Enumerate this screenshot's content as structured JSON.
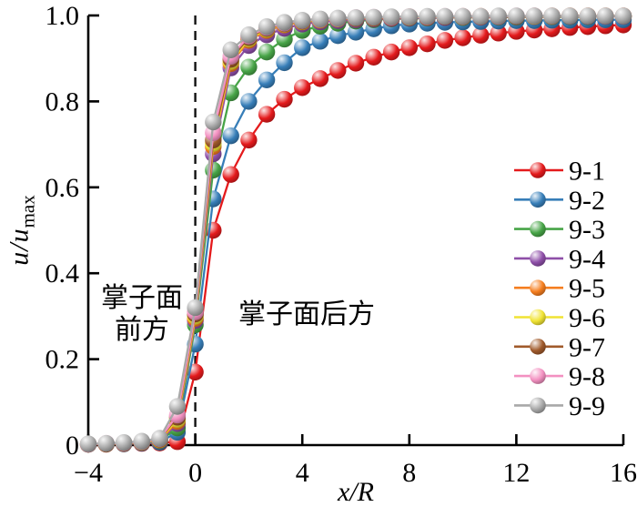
{
  "figure": {
    "background": "#ffffff",
    "axis_color": "#000000",
    "face_line_color": "#111111"
  },
  "chart_data": {
    "type": "line",
    "title": "",
    "xlabel_italic": "x/R",
    "ylabel_italic": "u/u",
    "ylabel_subscript": "max",
    "xlim": [
      -4,
      16
    ],
    "ylim": [
      0,
      1.0
    ],
    "grid": false,
    "legend_position": "right-middle",
    "face_line_x": 0,
    "xticks": {
      "values": [
        -4,
        0,
        4,
        8,
        12,
        16
      ],
      "labels": [
        "−4",
        "0",
        "4",
        "8",
        "12",
        "16"
      ]
    },
    "yticks": {
      "values": [
        0,
        0.2,
        0.4,
        0.6,
        0.8,
        1.0
      ],
      "labels": [
        "0",
        "0.2",
        "0.4",
        "0.6",
        "0.8",
        "1.0"
      ]
    },
    "annotations": {
      "ahead_line1": "掌子面",
      "ahead_line2": "前方",
      "behind": "掌子面后方"
    },
    "x": [
      -4,
      -3.33,
      -2.67,
      -2,
      -1.33,
      -0.67,
      0,
      0.67,
      1.33,
      2,
      2.67,
      3.33,
      4,
      4.67,
      5.33,
      6,
      6.67,
      7.33,
      8,
      8.67,
      9.33,
      10,
      10.67,
      11.33,
      12,
      12.67,
      13.33,
      14,
      14.67,
      15.33,
      16
    ],
    "series": [
      {
        "name": "9-1",
        "color": "#e41a1c",
        "values": [
          0.002,
          0.002,
          0.003,
          0.004,
          0.005,
          0.008,
          0.17,
          0.5,
          0.63,
          0.71,
          0.77,
          0.805,
          0.832,
          0.853,
          0.872,
          0.889,
          0.903,
          0.915,
          0.925,
          0.934,
          0.942,
          0.948,
          0.954,
          0.959,
          0.963,
          0.966,
          0.969,
          0.972,
          0.974,
          0.976,
          0.978
        ]
      },
      {
        "name": "9-2",
        "color": "#377eb8",
        "values": [
          0.002,
          0.003,
          0.003,
          0.005,
          0.007,
          0.03,
          0.235,
          0.573,
          0.72,
          0.8,
          0.85,
          0.89,
          0.925,
          0.94,
          0.953,
          0.961,
          0.969,
          0.976,
          0.98,
          0.982,
          0.984,
          0.985,
          0.986,
          0.987,
          0.988,
          0.988,
          0.989,
          0.989,
          0.99,
          0.99,
          0.99
        ]
      },
      {
        "name": "9-3",
        "color": "#47a447",
        "values": [
          0.002,
          0.003,
          0.004,
          0.006,
          0.01,
          0.04,
          0.28,
          0.64,
          0.82,
          0.88,
          0.915,
          0.945,
          0.965,
          0.975,
          0.982,
          0.987,
          0.99,
          0.992,
          0.993,
          0.994,
          0.995,
          0.995,
          0.996,
          0.996,
          0.996,
          0.997,
          0.997,
          0.997,
          0.997,
          0.998,
          0.998
        ]
      },
      {
        "name": "9-4",
        "color": "#8e4fa8",
        "values": [
          0.002,
          0.003,
          0.004,
          0.006,
          0.011,
          0.05,
          0.29,
          0.678,
          0.878,
          0.93,
          0.955,
          0.97,
          0.98,
          0.985,
          0.988,
          0.99,
          0.992,
          0.993,
          0.994,
          0.995,
          0.995,
          0.996,
          0.996,
          0.997,
          0.997,
          0.997,
          0.998,
          0.998,
          0.998,
          0.998,
          0.998
        ]
      },
      {
        "name": "9-5",
        "color": "#f57e1f",
        "values": [
          0.002,
          0.003,
          0.004,
          0.007,
          0.012,
          0.055,
          0.295,
          0.695,
          0.888,
          0.942,
          0.965,
          0.978,
          0.985,
          0.989,
          0.992,
          0.993,
          0.994,
          0.995,
          0.996,
          0.996,
          0.997,
          0.997,
          0.997,
          0.998,
          0.998,
          0.998,
          0.998,
          0.999,
          0.999,
          0.999,
          0.999
        ]
      },
      {
        "name": "9-6",
        "color": "#f0e333",
        "values": [
          0.002,
          0.003,
          0.005,
          0.007,
          0.013,
          0.06,
          0.3,
          0.702,
          0.893,
          0.946,
          0.968,
          0.98,
          0.986,
          0.99,
          0.992,
          0.994,
          0.995,
          0.996,
          0.996,
          0.997,
          0.997,
          0.997,
          0.998,
          0.998,
          0.998,
          0.998,
          0.999,
          0.999,
          0.999,
          0.999,
          0.999
        ]
      },
      {
        "name": "9-7",
        "color": "#a05a2b",
        "values": [
          0.002,
          0.003,
          0.005,
          0.008,
          0.014,
          0.065,
          0.305,
          0.71,
          0.898,
          0.949,
          0.97,
          0.981,
          0.987,
          0.991,
          0.993,
          0.994,
          0.995,
          0.996,
          0.997,
          0.997,
          0.997,
          0.998,
          0.998,
          0.998,
          0.998,
          0.999,
          0.999,
          0.999,
          0.999,
          0.999,
          0.999
        ]
      },
      {
        "name": "9-8",
        "color": "#f391c1",
        "values": [
          0.002,
          0.004,
          0.005,
          0.008,
          0.015,
          0.07,
          0.31,
          0.727,
          0.905,
          0.952,
          0.972,
          0.982,
          0.988,
          0.991,
          0.993,
          0.995,
          0.996,
          0.996,
          0.997,
          0.997,
          0.998,
          0.998,
          0.998,
          0.998,
          0.999,
          0.999,
          0.999,
          0.999,
          0.999,
          0.999,
          0.999
        ]
      },
      {
        "name": "9-9",
        "color": "#a8a8a8",
        "values": [
          0.003,
          0.004,
          0.006,
          0.009,
          0.016,
          0.09,
          0.32,
          0.752,
          0.92,
          0.955,
          0.974,
          0.984,
          0.989,
          0.992,
          0.994,
          0.995,
          0.996,
          0.997,
          0.997,
          0.998,
          0.998,
          0.998,
          0.998,
          0.999,
          0.999,
          0.999,
          0.999,
          0.999,
          0.999,
          0.999,
          0.999
        ]
      }
    ]
  }
}
